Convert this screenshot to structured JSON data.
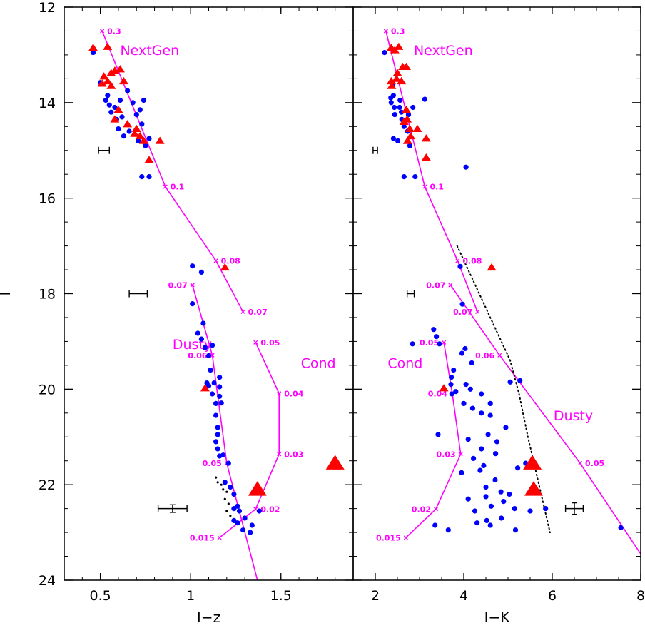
{
  "chart_data": [
    {
      "type": "scatter",
      "panel": "left",
      "xlabel": "I−z",
      "ylabel": "I",
      "xlim": [
        0.3,
        1.9
      ],
      "ylim": [
        24,
        12
      ],
      "y_inverted": true,
      "xticks": [
        0.5,
        1,
        1.5
      ],
      "xtick_labels": [
        "0.5",
        "1",
        "1.5"
      ],
      "yticks": [
        12,
        14,
        16,
        18,
        20,
        22,
        24
      ],
      "ytick_labels": [
        "12",
        "14",
        "16",
        "18",
        "20",
        "22",
        "24"
      ],
      "grid": false,
      "colors": {
        "model": "#ff00ff",
        "dots": "#0000ff",
        "triangles": "#ff0000",
        "dotted": "#000000",
        "errorbar": "#000000"
      },
      "model_labels": [
        {
          "text": "NextGen",
          "x": 0.61,
          "y": 12.9
        },
        {
          "text": "Dusty",
          "x": 0.9,
          "y": 19.05
        },
        {
          "text": "Cond",
          "x": 1.61,
          "y": 19.45
        }
      ],
      "models": [
        {
          "name": "NextGen",
          "x": [
            0.51,
            0.86,
            1.14,
            1.29
          ],
          "y": [
            12.5,
            15.76,
            17.31,
            18.38
          ]
        },
        {
          "name": "Dusty",
          "x": [
            1.01,
            1.12,
            1.2,
            1.37
          ],
          "y": [
            17.82,
            19.29,
            21.55,
            24
          ]
        },
        {
          "name": "Cond",
          "x": [
            1.36,
            1.49,
            1.49,
            1.36,
            1.16
          ],
          "y": [
            19.02,
            20.09,
            21.36,
            22.51,
            23.11
          ]
        }
      ],
      "mass_labels": [
        {
          "text": "0.3",
          "x": 0.51,
          "y": 12.5
        },
        {
          "text": "0.1",
          "x": 0.86,
          "y": 15.76
        },
        {
          "text": "0.08",
          "x": 1.14,
          "y": 17.31
        },
        {
          "text": "0.07",
          "x": 1.29,
          "y": 18.38
        },
        {
          "text": "0.07",
          "x": 1.01,
          "y": 17.82
        },
        {
          "text": "0.06",
          "x": 1.12,
          "y": 19.29
        },
        {
          "text": "0.05",
          "x": 1.2,
          "y": 21.55
        },
        {
          "text": "0.05",
          "x": 1.36,
          "y": 19.02
        },
        {
          "text": "0.04",
          "x": 1.49,
          "y": 20.09
        },
        {
          "text": "0.03",
          "x": 1.49,
          "y": 21.36
        },
        {
          "text": "0.02",
          "x": 1.36,
          "y": 22.51
        },
        {
          "text": "0.015",
          "x": 1.16,
          "y": 23.11
        }
      ],
      "dots": [
        [
          0.46,
          12.95
        ],
        [
          0.5,
          13.58
        ],
        [
          0.53,
          13.95
        ],
        [
          0.54,
          13.85
        ],
        [
          0.55,
          14.05
        ],
        [
          0.56,
          14.2
        ],
        [
          0.58,
          14.1
        ],
        [
          0.59,
          14.35
        ],
        [
          0.61,
          13.95
        ],
        [
          0.62,
          14.3
        ],
        [
          0.6,
          14.55
        ],
        [
          0.63,
          14.7
        ],
        [
          0.66,
          14.6
        ],
        [
          0.68,
          14.0
        ],
        [
          0.7,
          14.25
        ],
        [
          0.72,
          14.15
        ],
        [
          0.65,
          13.75
        ],
        [
          0.73,
          14.45
        ],
        [
          0.74,
          13.95
        ],
        [
          0.77,
          14.75
        ],
        [
          0.75,
          14.9
        ],
        [
          0.71,
          14.8
        ],
        [
          0.73,
          15.55
        ],
        [
          0.77,
          15.55
        ],
        [
          1.01,
          17.42
        ],
        [
          1.01,
          18.21
        ],
        [
          1.06,
          17.55
        ],
        [
          1.07,
          18.62
        ],
        [
          1.04,
          18.83
        ],
        [
          1.06,
          18.95
        ],
        [
          1.08,
          19.13
        ],
        [
          1.1,
          19.3
        ],
        [
          1.12,
          19.08
        ],
        [
          1.11,
          19.6
        ],
        [
          1.09,
          19.87
        ],
        [
          1.1,
          19.93
        ],
        [
          1.13,
          19.87
        ],
        [
          1.16,
          19.95
        ],
        [
          1.16,
          19.75
        ],
        [
          1.12,
          20.1
        ],
        [
          1.16,
          20.15
        ],
        [
          1.14,
          20.3
        ],
        [
          1.17,
          20.29
        ],
        [
          1.14,
          20.55
        ],
        [
          1.15,
          20.8
        ],
        [
          1.15,
          20.95
        ],
        [
          1.14,
          21.1
        ],
        [
          1.15,
          21.25
        ],
        [
          1.16,
          21.4
        ],
        [
          1.18,
          21.38
        ],
        [
          1.21,
          21.55
        ],
        [
          1.19,
          21.95
        ],
        [
          1.22,
          22.05
        ],
        [
          1.24,
          22.2
        ],
        [
          1.24,
          22.5
        ],
        [
          1.26,
          22.45
        ],
        [
          1.27,
          22.55
        ],
        [
          1.24,
          22.75
        ],
        [
          1.26,
          22.8
        ],
        [
          1.3,
          22.7
        ],
        [
          1.29,
          22.95
        ],
        [
          1.33,
          23.0
        ],
        [
          1.34,
          22.85
        ],
        [
          1.38,
          22.55
        ]
      ],
      "dotted_points": [
        [
          1.14,
          21.85
        ],
        [
          1.15,
          21.95
        ],
        [
          1.17,
          22.0
        ],
        [
          1.18,
          22.1
        ],
        [
          1.2,
          22.15
        ],
        [
          1.19,
          22.3
        ],
        [
          1.21,
          22.4
        ],
        [
          1.2,
          22.55
        ],
        [
          1.22,
          22.65
        ]
      ],
      "triangles_small": [
        [
          0.46,
          12.85
        ],
        [
          0.54,
          12.83
        ],
        [
          0.58,
          13.33
        ],
        [
          0.56,
          13.38
        ],
        [
          0.61,
          13.3
        ],
        [
          0.52,
          13.45
        ],
        [
          0.51,
          13.6
        ],
        [
          0.54,
          13.55
        ],
        [
          0.56,
          13.65
        ],
        [
          0.63,
          13.55
        ],
        [
          0.6,
          14.15
        ],
        [
          0.58,
          14.35
        ],
        [
          0.65,
          14.45
        ],
        [
          0.7,
          14.55
        ],
        [
          0.69,
          14.65
        ],
        [
          0.72,
          14.7
        ],
        [
          0.74,
          14.8
        ],
        [
          0.83,
          14.8
        ],
        [
          0.77,
          15.2
        ],
        [
          1.19,
          17.45
        ],
        [
          1.08,
          19.98
        ]
      ],
      "triangles_large": [
        [
          1.37,
          22.1
        ],
        [
          1.8,
          21.55
        ]
      ],
      "error_bars": [
        {
          "x": 0.52,
          "y": 15.0,
          "xerr": 0.03
        },
        {
          "x": 0.71,
          "y": 18.0,
          "xerr": 0.05
        },
        {
          "x": 0.9,
          "y": 22.5,
          "xerr": 0.08,
          "yerr": 0.08
        }
      ]
    },
    {
      "type": "scatter",
      "panel": "right",
      "xlabel": "I−K",
      "ylabel": "",
      "xlim": [
        1.5,
        8
      ],
      "ylim": [
        24,
        12
      ],
      "y_inverted": true,
      "xticks": [
        2,
        4,
        6,
        8
      ],
      "xtick_labels": [
        "2",
        "4",
        "6",
        "8"
      ],
      "yticks": [
        12,
        14,
        16,
        18,
        20,
        22,
        24
      ],
      "ytick_labels": [],
      "grid": false,
      "colors": {
        "model": "#ff00ff",
        "dots": "#0000ff",
        "triangles": "#ff0000",
        "dotted": "#000000",
        "errorbar": "#000000"
      },
      "model_labels": [
        {
          "text": "NextGen",
          "x": 2.87,
          "y": 12.9
        },
        {
          "text": "Cond",
          "x": 2.28,
          "y": 19.45
        },
        {
          "text": "Dusty",
          "x": 6.03,
          "y": 20.55
        }
      ],
      "models": [
        {
          "name": "NextGen",
          "x": [
            2.24,
            3.12,
            3.86,
            4.31
          ],
          "y": [
            12.5,
            15.76,
            17.31,
            18.38
          ]
        },
        {
          "name": "Dusty",
          "x": [
            3.7,
            4.81,
            6.63,
            8.0
          ],
          "y": [
            17.82,
            19.29,
            21.55,
            23.45
          ]
        },
        {
          "name": "Cond",
          "x": [
            3.55,
            3.74,
            3.93,
            3.37,
            2.69
          ],
          "y": [
            19.02,
            20.09,
            21.36,
            22.51,
            23.11
          ]
        }
      ],
      "mass_labels": [
        {
          "text": "0.3",
          "x": 2.24,
          "y": 12.5
        },
        {
          "text": "0.1",
          "x": 3.12,
          "y": 15.76
        },
        {
          "text": "0.08",
          "x": 3.86,
          "y": 17.31
        },
        {
          "text": "0.07",
          "x": 4.31,
          "y": 18.38
        },
        {
          "text": "0.07",
          "x": 3.7,
          "y": 17.82
        },
        {
          "text": "0.06",
          "x": 4.81,
          "y": 19.29
        },
        {
          "text": "0.05",
          "x": 6.63,
          "y": 21.55
        },
        {
          "text": "0.05",
          "x": 3.55,
          "y": 19.02
        },
        {
          "text": "0.04",
          "x": 3.74,
          "y": 20.09
        },
        {
          "text": "0.03",
          "x": 3.93,
          "y": 21.36
        },
        {
          "text": "0.02",
          "x": 3.37,
          "y": 22.51
        },
        {
          "text": "0.015",
          "x": 2.69,
          "y": 23.11
        }
      ],
      "dots": [
        [
          2.21,
          12.95
        ],
        [
          2.4,
          13.6
        ],
        [
          2.35,
          13.9
        ],
        [
          2.41,
          13.85
        ],
        [
          2.36,
          14.0
        ],
        [
          2.43,
          14.1
        ],
        [
          2.44,
          14.25
        ],
        [
          2.55,
          14.1
        ],
        [
          2.56,
          13.95
        ],
        [
          2.59,
          14.2
        ],
        [
          2.6,
          14.35
        ],
        [
          2.75,
          14.25
        ],
        [
          2.85,
          14.1
        ],
        [
          3.12,
          13.93
        ],
        [
          2.65,
          14.5
        ],
        [
          2.73,
          14.6
        ],
        [
          2.41,
          14.75
        ],
        [
          2.51,
          14.8
        ],
        [
          2.78,
          14.9
        ],
        [
          2.65,
          15.55
        ],
        [
          2.9,
          15.55
        ],
        [
          4.05,
          15.35
        ],
        [
          3.92,
          17.43
        ],
        [
          3.97,
          18.22
        ],
        [
          3.32,
          18.75
        ],
        [
          3.38,
          18.9
        ],
        [
          3.45,
          19.05
        ],
        [
          2.84,
          19.05
        ],
        [
          4.03,
          19.15
        ],
        [
          3.96,
          19.25
        ],
        [
          4.18,
          19.45
        ],
        [
          3.77,
          19.6
        ],
        [
          3.72,
          19.75
        ],
        [
          3.71,
          19.9
        ],
        [
          3.73,
          20.1
        ],
        [
          3.82,
          20.05
        ],
        [
          4.05,
          19.9
        ],
        [
          4.15,
          20.0
        ],
        [
          4.4,
          20.1
        ],
        [
          4.0,
          20.3
        ],
        [
          4.2,
          20.4
        ],
        [
          4.4,
          20.5
        ],
        [
          4.6,
          20.3
        ],
        [
          5.05,
          19.85
        ],
        [
          5.27,
          19.82
        ],
        [
          4.6,
          20.55
        ],
        [
          4.55,
          20.95
        ],
        [
          4.95,
          20.8
        ],
        [
          4.75,
          21.1
        ],
        [
          4.1,
          21.05
        ],
        [
          3.42,
          20.95
        ],
        [
          4.4,
          21.25
        ],
        [
          4.72,
          21.35
        ],
        [
          4.22,
          21.45
        ],
        [
          4.45,
          21.6
        ],
        [
          3.95,
          21.75
        ],
        [
          4.37,
          21.7
        ],
        [
          4.5,
          22.05
        ],
        [
          4.71,
          21.9
        ],
        [
          5.22,
          21.65
        ],
        [
          5.4,
          21.55
        ],
        [
          4.84,
          22.15
        ],
        [
          5.03,
          22.2
        ],
        [
          4.9,
          22.35
        ],
        [
          5.15,
          22.5
        ],
        [
          5.5,
          22.55
        ],
        [
          5.85,
          22.5
        ],
        [
          4.1,
          22.3
        ],
        [
          4.5,
          22.25
        ],
        [
          4.62,
          22.45
        ],
        [
          4.25,
          22.55
        ],
        [
          4.3,
          22.8
        ],
        [
          4.52,
          22.75
        ],
        [
          4.6,
          22.85
        ],
        [
          4.85,
          22.7
        ],
        [
          3.35,
          22.85
        ],
        [
          3.65,
          22.95
        ],
        [
          5.17,
          22.95
        ],
        [
          7.55,
          22.9
        ]
      ],
      "triangles_small": [
        [
          2.36,
          12.85
        ],
        [
          2.53,
          12.83
        ],
        [
          2.44,
          12.9
        ],
        [
          2.62,
          13.25
        ],
        [
          2.7,
          13.25
        ],
        [
          2.5,
          13.38
        ],
        [
          2.48,
          13.5
        ],
        [
          2.36,
          13.55
        ],
        [
          2.59,
          13.55
        ],
        [
          2.37,
          13.65
        ],
        [
          2.7,
          14.15
        ],
        [
          2.72,
          14.35
        ],
        [
          2.65,
          14.4
        ],
        [
          2.78,
          14.55
        ],
        [
          2.95,
          14.55
        ],
        [
          2.8,
          14.7
        ],
        [
          3.15,
          14.75
        ],
        [
          2.73,
          14.8
        ],
        [
          3.15,
          15.15
        ],
        [
          4.63,
          17.45
        ],
        [
          3.55,
          19.98
        ]
      ],
      "triangles_large": [
        [
          5.55,
          21.55
        ],
        [
          5.58,
          22.1
        ]
      ],
      "dotted_line": {
        "x": [
          3.85,
          4.55,
          5.05,
          5.25,
          5.45,
          5.75,
          5.95
        ],
        "y": [
          17.0,
          18.4,
          19.4,
          20.1,
          21.0,
          22.2,
          23.0
        ]
      },
      "error_bars": [
        {
          "x": 2.0,
          "y": 15.0,
          "xerr": 0.05
        },
        {
          "x": 2.8,
          "y": 18.0,
          "xerr": 0.08
        },
        {
          "x": 6.5,
          "y": 22.5,
          "xerr": 0.2,
          "yerr": 0.12
        }
      ]
    }
  ]
}
